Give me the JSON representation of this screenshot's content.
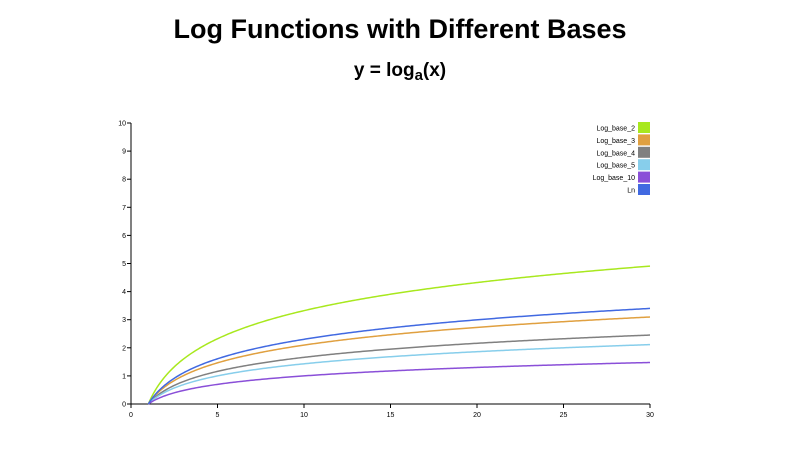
{
  "title": "Log Functions with Different Bases",
  "subtitle": {
    "prefix": "y = log",
    "subscript": "a",
    "suffix": "(x)"
  },
  "chart_data": {
    "type": "line",
    "xlim": [
      0,
      30
    ],
    "ylim": [
      0,
      10
    ],
    "x_ticks": [
      "0",
      "5",
      "10",
      "15",
      "20",
      "25",
      "30"
    ],
    "y_ticks": [
      "0",
      "1",
      "2",
      "3",
      "4",
      "5",
      "6",
      "7",
      "8",
      "9",
      "10"
    ],
    "x_range": [
      1,
      30
    ],
    "grid": false,
    "legend_position": "top-right",
    "series": [
      {
        "name": "Log_base_2",
        "base": 2,
        "color": "#a8e81e"
      },
      {
        "name": "Log_base_3",
        "base": 3,
        "color": "#e0a040"
      },
      {
        "name": "Log_base_4",
        "base": 4,
        "color": "#808080"
      },
      {
        "name": "Log_base_5",
        "base": 5,
        "color": "#87ceeb"
      },
      {
        "name": "Log_base_10",
        "base": 10,
        "color": "#8a4fd8"
      },
      {
        "name": "Ln",
        "base": 2.718281828,
        "color": "#4169e1"
      }
    ]
  }
}
